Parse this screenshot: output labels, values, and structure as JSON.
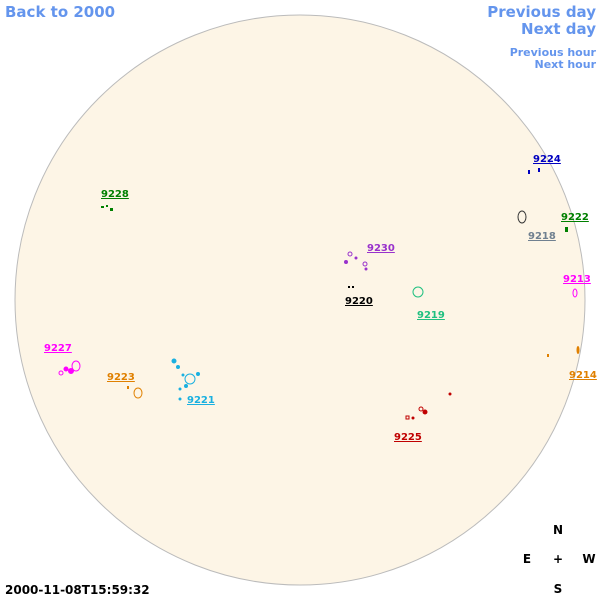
{
  "navigation": {
    "back": "Back to 2000",
    "previous_day": "Previous day",
    "next_day": "Next day",
    "previous_hour": "Previous hour",
    "next_hour": "Next hour"
  },
  "regions": [
    "9228",
    "9230",
    "9220",
    "9219",
    "9224",
    "9222",
    "9218",
    "9213",
    "9214",
    "9227",
    "9223",
    "9221",
    "9225"
  ],
  "timestamp": "2000-11-08T15:59:32",
  "compass": {
    "north": "N",
    "east": "E",
    "center": "+",
    "west": "W",
    "south": "S"
  }
}
